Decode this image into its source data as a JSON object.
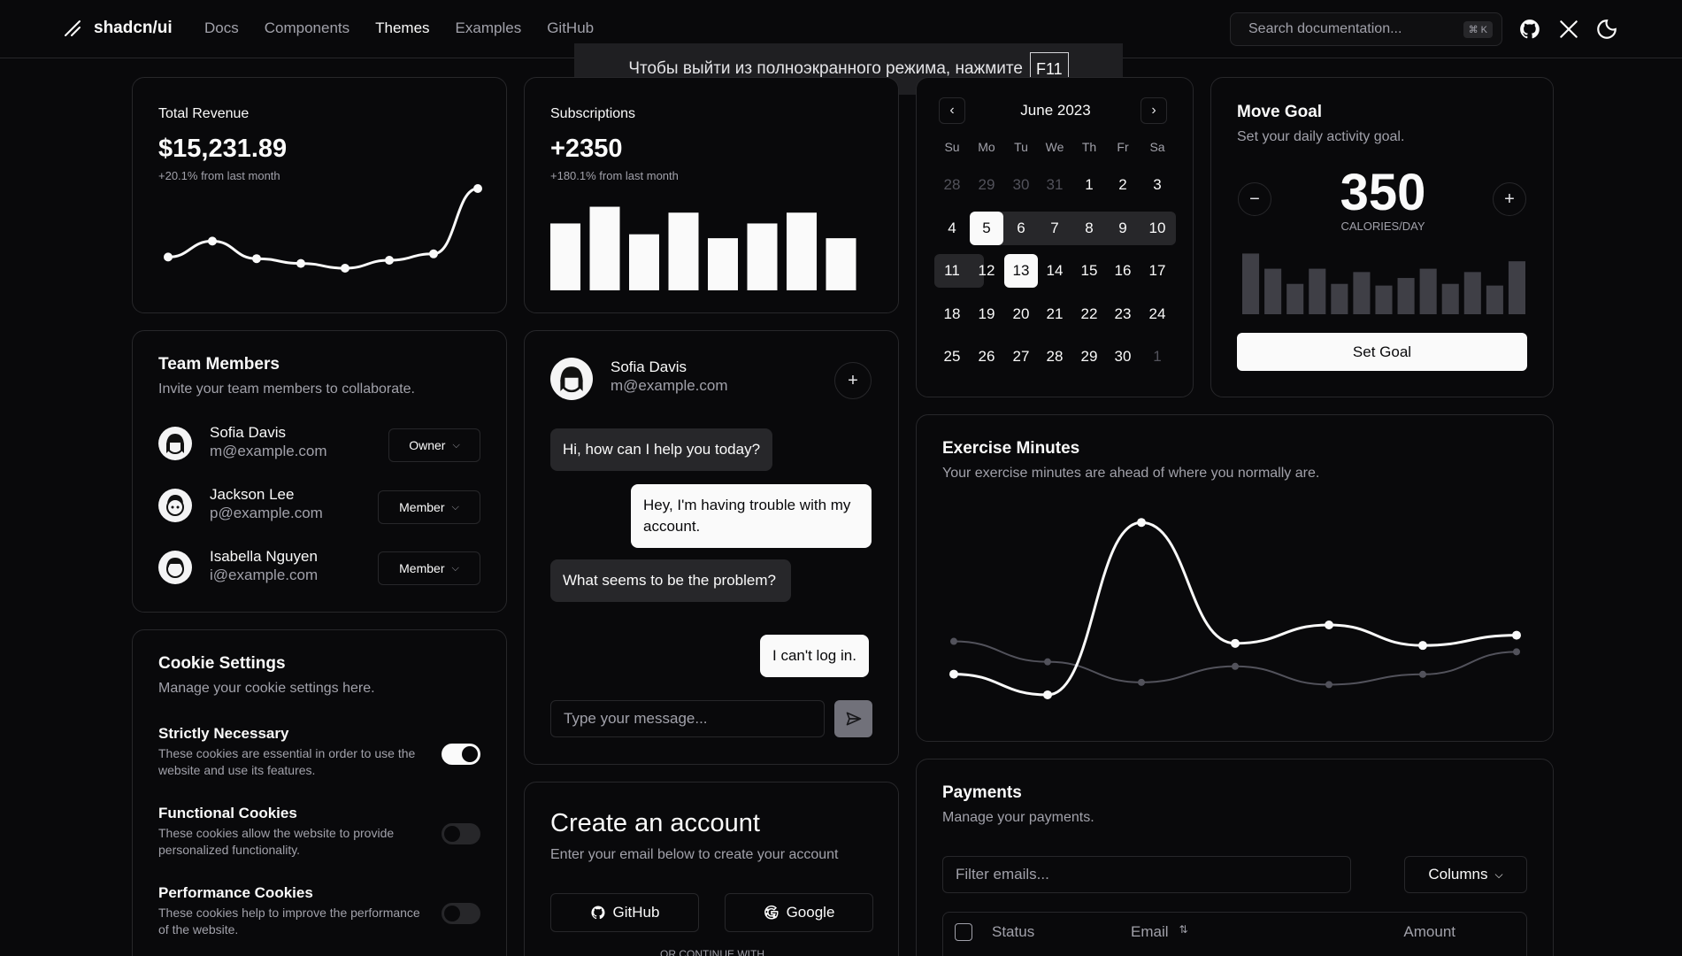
{
  "header": {
    "brand": "shadcn/ui",
    "nav": [
      "Docs",
      "Components",
      "Themes",
      "Examples",
      "GitHub"
    ],
    "active_nav": "Themes",
    "search_placeholder": "Search documentation...",
    "search_kbd": "⌘ K"
  },
  "toast": {
    "text": "Чтобы выйти из полноэкранного режима, нажмите",
    "key": "F11"
  },
  "revenue": {
    "title": "Total Revenue",
    "value": "$15,231.89",
    "change": "+20.1% from last month",
    "chart_data": {
      "type": "line",
      "values": [
        10,
        30,
        8,
        2,
        -4,
        6,
        14,
        96
      ]
    }
  },
  "subscriptions": {
    "title": "Subscriptions",
    "value": "+2350",
    "change": "+180.1% from last month",
    "chart_data": {
      "type": "bar",
      "values": [
        68,
        85,
        57,
        79,
        53,
        68,
        79,
        53
      ]
    }
  },
  "calendar": {
    "month": "June 2023",
    "weekdays": [
      "Su",
      "Mo",
      "Tu",
      "We",
      "Th",
      "Fr",
      "Sa"
    ],
    "weeks": [
      [
        "28",
        "29",
        "30",
        "31",
        "1",
        "2",
        "3"
      ],
      [
        "4",
        "5",
        "6",
        "7",
        "8",
        "9",
        "10"
      ],
      [
        "11",
        "12",
        "13",
        "14",
        "15",
        "16",
        "17"
      ],
      [
        "18",
        "19",
        "20",
        "21",
        "22",
        "23",
        "24"
      ],
      [
        "25",
        "26",
        "27",
        "28",
        "29",
        "30",
        "1"
      ]
    ]
  },
  "goal": {
    "title": "Move Goal",
    "desc": "Set your daily activity goal.",
    "value": "350",
    "unit": "CALORIES/DAY",
    "button": "Set Goal",
    "chart_data": {
      "type": "bar",
      "values": [
        400,
        300,
        200,
        300,
        200,
        278,
        189,
        239,
        300,
        200,
        278,
        189,
        349
      ]
    }
  },
  "team": {
    "title": "Team Members",
    "desc": "Invite your team members to collaborate.",
    "members": [
      {
        "name": "Sofia Davis",
        "email": "m@example.com",
        "role": "Owner"
      },
      {
        "name": "Jackson Lee",
        "email": "p@example.com",
        "role": "Member"
      },
      {
        "name": "Isabella Nguyen",
        "email": "i@example.com",
        "role": "Member"
      }
    ]
  },
  "chat": {
    "name": "Sofia Davis",
    "email": "m@example.com",
    "messages": [
      "Hi, how can I help you today?",
      "Hey, I'm having trouble with my account.",
      "What seems to be the problem?",
      "I can't log in."
    ],
    "placeholder": "Type your message..."
  },
  "exercise": {
    "title": "Exercise Minutes",
    "desc": "Your exercise minutes are ahead of where you normally are.",
    "chart_data": {
      "type": "line",
      "series": [
        {
          "values": [
            240,
            139,
            980,
            390,
            480,
            380,
            430
          ]
        },
        {
          "values": [
            400,
            300,
            200,
            278,
            189,
            239,
            349
          ]
        }
      ]
    }
  },
  "cookies": {
    "title": "Cookie Settings",
    "desc": "Manage your cookie settings here.",
    "items": [
      {
        "name": "Strictly Necessary",
        "desc": "These cookies are essential in order to use the website and use its features.",
        "on": true
      },
      {
        "name": "Functional Cookies",
        "desc": "These cookies allow the website to provide personalized functionality.",
        "on": false
      },
      {
        "name": "Performance Cookies",
        "desc": "These cookies help to improve the performance of the website.",
        "on": false
      }
    ]
  },
  "account": {
    "title": "Create an account",
    "desc": "Enter your email below to create your account",
    "github": "GitHub",
    "google": "Google",
    "divider": "OR CONTINUE WITH"
  },
  "payments": {
    "title": "Payments",
    "desc": "Manage your payments.",
    "filter_placeholder": "Filter emails...",
    "columns_button": "Columns",
    "headers": [
      "Status",
      "Email",
      "Amount"
    ]
  }
}
